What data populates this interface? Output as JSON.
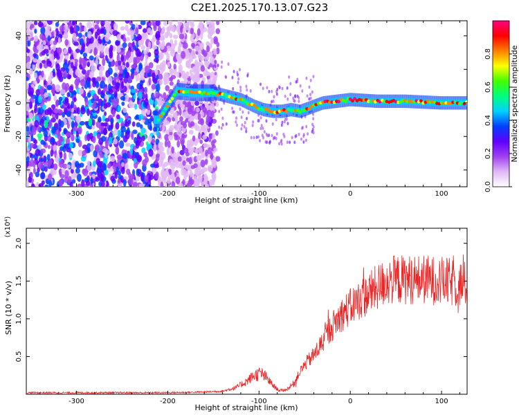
{
  "title": "C2E1.2025.170.13.07.G23",
  "chart_data": [
    {
      "type": "heatmap",
      "xlabel": "Height of straight line (km)",
      "ylabel": "Frequency (Hz)",
      "xlim": [
        -355,
        128
      ],
      "ylim": [
        -50,
        49
      ],
      "xticks": [
        -300,
        -200,
        -100,
        0,
        100
      ],
      "yticks": [
        -40,
        -20,
        0,
        20,
        40
      ],
      "colorbar": {
        "label": "Normalized spectral amplitude",
        "range": [
          0.0,
          1.0
        ],
        "ticks": [
          "0.0",
          "0.2",
          "0.4",
          "0.6",
          "0.8"
        ],
        "colors": [
          "#ffffff",
          "#e0b8f5",
          "#a040f0",
          "#6000ff",
          "#0040ff",
          "#00d0ff",
          "#00ff80",
          "#40ff00",
          "#ffff00",
          "#ff8000",
          "#ff0000",
          "#ff0080"
        ]
      },
      "track": {
        "x": [
          -210,
          -190,
          -170,
          -150,
          -135,
          -120,
          -105,
          -95,
          -85,
          -75,
          -65,
          -55,
          -45,
          -30,
          -15,
          0,
          30,
          60,
          100,
          128
        ],
        "y": [
          -10,
          7,
          6,
          6,
          4,
          2,
          -2,
          -4,
          -5,
          -5,
          -4,
          -5,
          -3,
          0,
          1,
          2,
          1,
          1,
          0,
          0
        ]
      }
    },
    {
      "type": "line",
      "xlabel": "Height of straight line (km)",
      "ylabel": "SNR (10 * v/v)",
      "yscale_label": "(x10⁴)",
      "xlim": [
        -355,
        128
      ],
      "ylim": [
        0,
        2.2
      ],
      "xticks": [
        -300,
        -200,
        -100,
        0,
        100
      ],
      "yticks": [
        0.5,
        1.0,
        1.5,
        2.0
      ],
      "ytick_labels": [
        "0.5",
        "1.0",
        "1.5",
        "2.0"
      ],
      "color": "#ee2222",
      "series": [
        {
          "x": [
            -355,
            -200,
            -160,
            -140,
            -125,
            -115,
            -105,
            -98,
            -92,
            -85,
            -78,
            -70,
            -62,
            -55,
            -48,
            -40,
            -30,
            -20,
            -10,
            0,
            10,
            20,
            30,
            40,
            50,
            60,
            80,
            100,
            110,
            128
          ],
          "values": [
            0.02,
            0.02,
            0.03,
            0.04,
            0.09,
            0.16,
            0.25,
            0.28,
            0.22,
            0.12,
            0.05,
            0.06,
            0.14,
            0.3,
            0.42,
            0.52,
            0.7,
            0.9,
            1.05,
            1.15,
            1.25,
            1.33,
            1.42,
            1.5,
            1.52,
            1.52,
            1.52,
            1.5,
            1.48,
            1.45
          ]
        }
      ]
    }
  ]
}
